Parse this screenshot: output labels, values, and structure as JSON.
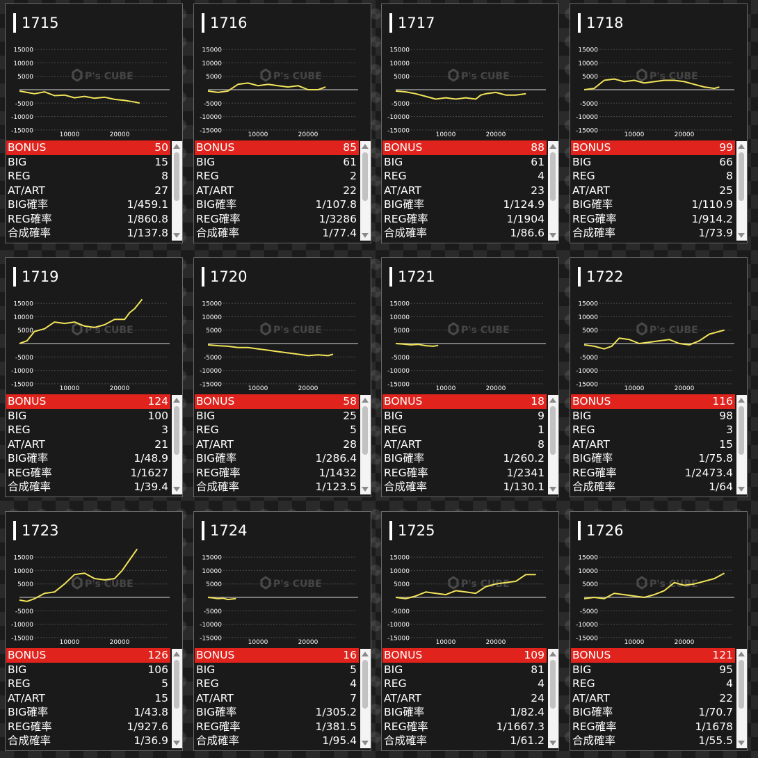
{
  "axis": {
    "y_ticks": [
      "15000",
      "10000",
      "5000",
      "-5000",
      "-10000",
      "-15000"
    ],
    "y_values": [
      15000,
      10000,
      5000,
      -5000,
      -10000,
      -15000
    ],
    "x_ticks": [
      "10000",
      "20000"
    ],
    "x_values": [
      10000,
      20000
    ],
    "x_range": [
      0,
      30000
    ],
    "y_range": [
      -17500,
      17500
    ]
  },
  "watermark": {
    "main": "P's CUBE"
  },
  "colors": {
    "line": "#f2e45a",
    "bonus_bar": "#e0231c",
    "card_bg": "#1a1a1a"
  },
  "machines": [
    {
      "id": "1715",
      "stats": [
        {
          "label": "BONUS",
          "value": "50"
        },
        {
          "label": "BIG",
          "value": "15"
        },
        {
          "label": "REG",
          "value": "8"
        },
        {
          "label": "AT/ART",
          "value": "27"
        },
        {
          "label": "BIG確率",
          "value": "1/459.1"
        },
        {
          "label": "REG確率",
          "value": "1/860.8"
        },
        {
          "label": "合成確率",
          "value": "1/137.8"
        }
      ]
    },
    {
      "id": "1716",
      "stats": [
        {
          "label": "BONUS",
          "value": "85"
        },
        {
          "label": "BIG",
          "value": "61"
        },
        {
          "label": "REG",
          "value": "2"
        },
        {
          "label": "AT/ART",
          "value": "22"
        },
        {
          "label": "BIG確率",
          "value": "1/107.8"
        },
        {
          "label": "REG確率",
          "value": "1/3286"
        },
        {
          "label": "合成確率",
          "value": "1/77.4"
        }
      ]
    },
    {
      "id": "1717",
      "stats": [
        {
          "label": "BONUS",
          "value": "88"
        },
        {
          "label": "BIG",
          "value": "61"
        },
        {
          "label": "REG",
          "value": "4"
        },
        {
          "label": "AT/ART",
          "value": "23"
        },
        {
          "label": "BIG確率",
          "value": "1/124.9"
        },
        {
          "label": "REG確率",
          "value": "1/1904"
        },
        {
          "label": "合成確率",
          "value": "1/86.6"
        }
      ]
    },
    {
      "id": "1718",
      "stats": [
        {
          "label": "BONUS",
          "value": "99"
        },
        {
          "label": "BIG",
          "value": "66"
        },
        {
          "label": "REG",
          "value": "8"
        },
        {
          "label": "AT/ART",
          "value": "25"
        },
        {
          "label": "BIG確率",
          "value": "1/110.9"
        },
        {
          "label": "REG確率",
          "value": "1/914.2"
        },
        {
          "label": "合成確率",
          "value": "1/73.9"
        }
      ]
    },
    {
      "id": "1719",
      "stats": [
        {
          "label": "BONUS",
          "value": "124"
        },
        {
          "label": "BIG",
          "value": "100"
        },
        {
          "label": "REG",
          "value": "3"
        },
        {
          "label": "AT/ART",
          "value": "21"
        },
        {
          "label": "BIG確率",
          "value": "1/48.9"
        },
        {
          "label": "REG確率",
          "value": "1/1627"
        },
        {
          "label": "合成確率",
          "value": "1/39.4"
        }
      ]
    },
    {
      "id": "1720",
      "stats": [
        {
          "label": "BONUS",
          "value": "58"
        },
        {
          "label": "BIG",
          "value": "25"
        },
        {
          "label": "REG",
          "value": "5"
        },
        {
          "label": "AT/ART",
          "value": "28"
        },
        {
          "label": "BIG確率",
          "value": "1/286.4"
        },
        {
          "label": "REG確率",
          "value": "1/1432"
        },
        {
          "label": "合成確率",
          "value": "1/123.5"
        }
      ]
    },
    {
      "id": "1721",
      "stats": [
        {
          "label": "BONUS",
          "value": "18"
        },
        {
          "label": "BIG",
          "value": "9"
        },
        {
          "label": "REG",
          "value": "1"
        },
        {
          "label": "AT/ART",
          "value": "8"
        },
        {
          "label": "BIG確率",
          "value": "1/260.2"
        },
        {
          "label": "REG確率",
          "value": "1/2341"
        },
        {
          "label": "合成確率",
          "value": "1/130.1"
        }
      ]
    },
    {
      "id": "1722",
      "stats": [
        {
          "label": "BONUS",
          "value": "116"
        },
        {
          "label": "BIG",
          "value": "98"
        },
        {
          "label": "REG",
          "value": "3"
        },
        {
          "label": "AT/ART",
          "value": "15"
        },
        {
          "label": "BIG確率",
          "value": "1/75.8"
        },
        {
          "label": "REG確率",
          "value": "1/2473.4"
        },
        {
          "label": "合成確率",
          "value": "1/64"
        }
      ]
    },
    {
      "id": "1723",
      "stats": [
        {
          "label": "BONUS",
          "value": "126"
        },
        {
          "label": "BIG",
          "value": "106"
        },
        {
          "label": "REG",
          "value": "5"
        },
        {
          "label": "AT/ART",
          "value": "15"
        },
        {
          "label": "BIG確率",
          "value": "1/43.8"
        },
        {
          "label": "REG確率",
          "value": "1/927.6"
        },
        {
          "label": "合成確率",
          "value": "1/36.9"
        }
      ]
    },
    {
      "id": "1724",
      "stats": [
        {
          "label": "BONUS",
          "value": "16"
        },
        {
          "label": "BIG",
          "value": "5"
        },
        {
          "label": "REG",
          "value": "4"
        },
        {
          "label": "AT/ART",
          "value": "7"
        },
        {
          "label": "BIG確率",
          "value": "1/305.2"
        },
        {
          "label": "REG確率",
          "value": "1/381.5"
        },
        {
          "label": "合成確率",
          "value": "1/95.4"
        }
      ]
    },
    {
      "id": "1725",
      "stats": [
        {
          "label": "BONUS",
          "value": "109"
        },
        {
          "label": "BIG",
          "value": "81"
        },
        {
          "label": "REG",
          "value": "4"
        },
        {
          "label": "AT/ART",
          "value": "24"
        },
        {
          "label": "BIG確率",
          "value": "1/82.4"
        },
        {
          "label": "REG確率",
          "value": "1/1667.3"
        },
        {
          "label": "合成確率",
          "value": "1/61.2"
        }
      ]
    },
    {
      "id": "1726",
      "stats": [
        {
          "label": "BONUS",
          "value": "121"
        },
        {
          "label": "BIG",
          "value": "95"
        },
        {
          "label": "REG",
          "value": "4"
        },
        {
          "label": "AT/ART",
          "value": "22"
        },
        {
          "label": "BIG確率",
          "value": "1/70.7"
        },
        {
          "label": "REG確率",
          "value": "1/1678"
        },
        {
          "label": "合成確率",
          "value": "1/55.5"
        }
      ]
    }
  ],
  "chart_data": [
    {
      "type": "line",
      "title": "1715",
      "x": [
        0,
        1500,
        3000,
        5000,
        7000,
        9000,
        11000,
        13000,
        15000,
        17000,
        19000,
        21000,
        23000,
        24000
      ],
      "y": [
        -500,
        -1000,
        -1500,
        -800,
        -2200,
        -2000,
        -3000,
        -2500,
        -3200,
        -2800,
        -3600,
        -4000,
        -4600,
        -5000
      ]
    },
    {
      "type": "line",
      "title": "1716",
      "x": [
        0,
        2000,
        4000,
        6000,
        8000,
        10000,
        12000,
        14000,
        16000,
        18000,
        20000,
        22000,
        23500
      ],
      "y": [
        -500,
        -1000,
        -500,
        2000,
        2500,
        1500,
        2000,
        1500,
        1000,
        1500,
        0,
        0,
        1000
      ]
    },
    {
      "type": "line",
      "title": "1717",
      "x": [
        0,
        2000,
        4000,
        6000,
        8000,
        10000,
        12000,
        14000,
        16000,
        17000,
        18000,
        20000,
        22000,
        24000,
        26000
      ],
      "y": [
        -500,
        -800,
        -1500,
        -2500,
        -3500,
        -3000,
        -3500,
        -3000,
        -3500,
        -2000,
        -1500,
        -1000,
        -2000,
        -2000,
        -1500
      ]
    },
    {
      "type": "line",
      "title": "1718",
      "x": [
        0,
        2000,
        4000,
        6000,
        8000,
        10000,
        12000,
        14000,
        16000,
        18000,
        20000,
        22000,
        24000,
        26000,
        27000
      ],
      "y": [
        0,
        500,
        3500,
        4000,
        3000,
        3500,
        2500,
        3000,
        3500,
        3500,
        3000,
        2000,
        1000,
        500,
        1000
      ]
    },
    {
      "type": "line",
      "title": "1719",
      "x": [
        0,
        1500,
        3000,
        5000,
        7000,
        9000,
        11000,
        13000,
        15000,
        17000,
        19000,
        21000,
        22000,
        23000,
        24500
      ],
      "y": [
        0,
        1000,
        4500,
        5500,
        8000,
        7500,
        8000,
        6500,
        6000,
        7000,
        9000,
        9000,
        11500,
        13000,
        16500
      ]
    },
    {
      "type": "line",
      "title": "1720",
      "x": [
        0,
        2000,
        4000,
        6000,
        8000,
        10000,
        12000,
        14000,
        16000,
        18000,
        20000,
        22000,
        24000,
        25000
      ],
      "y": [
        -500,
        -800,
        -1000,
        -1500,
        -1500,
        -2000,
        -2500,
        -3000,
        -3500,
        -4000,
        -4500,
        -4200,
        -4500,
        -4000
      ]
    },
    {
      "type": "line",
      "title": "1721",
      "x": [
        0,
        1500,
        3000,
        4500,
        6000,
        7500,
        8500
      ],
      "y": [
        0,
        -200,
        -500,
        -300,
        -800,
        -1000,
        -700
      ]
    },
    {
      "type": "line",
      "title": "1722",
      "x": [
        0,
        2000,
        4000,
        5500,
        7000,
        9000,
        11000,
        13000,
        15000,
        17000,
        19000,
        21000,
        23000,
        25000,
        27000,
        28000
      ],
      "y": [
        -500,
        -1000,
        -2000,
        -1000,
        2000,
        1500,
        0,
        500,
        1000,
        1500,
        0,
        -500,
        1000,
        3500,
        4500,
        5000
      ]
    },
    {
      "type": "line",
      "title": "1723",
      "x": [
        0,
        1500,
        3000,
        5000,
        7000,
        9000,
        11000,
        13000,
        15000,
        17000,
        19000,
        20500,
        22000,
        23500
      ],
      "y": [
        -1000,
        -1500,
        -500,
        1500,
        2000,
        5000,
        8500,
        9000,
        7000,
        6500,
        7000,
        10000,
        14000,
        18000
      ]
    },
    {
      "type": "line",
      "title": "1724",
      "x": [
        0,
        1000,
        2000,
        3000,
        4000,
        5000,
        5600
      ],
      "y": [
        0,
        -200,
        -500,
        -300,
        -800,
        -600,
        -500
      ]
    },
    {
      "type": "line",
      "title": "1725",
      "x": [
        0,
        2000,
        4000,
        6000,
        8000,
        10000,
        12000,
        14000,
        16000,
        18000,
        20000,
        22000,
        24000,
        26000,
        28000
      ],
      "y": [
        0,
        -500,
        500,
        2000,
        1500,
        1000,
        2500,
        2000,
        1500,
        4000,
        5000,
        5500,
        6000,
        8500,
        8500
      ]
    },
    {
      "type": "line",
      "title": "1726",
      "x": [
        0,
        2000,
        4000,
        6000,
        8000,
        10000,
        12000,
        14000,
        16000,
        18000,
        20000,
        22000,
        24000,
        26000,
        28000
      ],
      "y": [
        -500,
        0,
        -500,
        1500,
        1000,
        500,
        0,
        1000,
        2500,
        5500,
        4500,
        5000,
        6000,
        7000,
        9000
      ]
    }
  ]
}
